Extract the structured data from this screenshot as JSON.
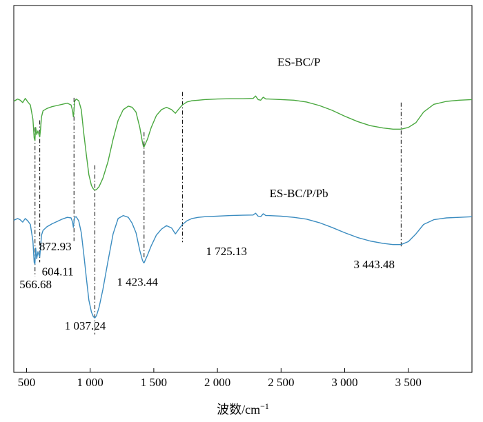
{
  "chart_data": {
    "type": "line",
    "title": "",
    "xlabel": "波数/cm",
    "xlabel_superscript": "−1",
    "ylabel": "",
    "xlim": [
      400,
      4000
    ],
    "xticks": [
      500,
      1000,
      1500,
      2000,
      2500,
      3000,
      3500
    ],
    "xtick_labels": [
      "500",
      "1 000",
      "1 500",
      "2 000",
      "2 500",
      "3 000",
      "3 500"
    ],
    "y_ticks_shown": false,
    "grid": false,
    "series": [
      {
        "name": "ES-BC/P",
        "color": "#4aa83f",
        "x": [
          400,
          430,
          450,
          470,
          490,
          510,
          530,
          550,
          560,
          566,
          572,
          580,
          590,
          598,
          604,
          610,
          618,
          630,
          660,
          700,
          740,
          780,
          820,
          850,
          862,
          868,
          873,
          878,
          890,
          910,
          930,
          950,
          970,
          990,
          1010,
          1025,
          1037,
          1050,
          1070,
          1100,
          1140,
          1180,
          1220,
          1260,
          1300,
          1330,
          1360,
          1390,
          1410,
          1418,
          1423,
          1432,
          1450,
          1480,
          1520,
          1560,
          1600,
          1640,
          1670,
          1700,
          1725,
          1760,
          1800,
          1850,
          1900,
          2000,
          2100,
          2200,
          2280,
          2300,
          2320,
          2340,
          2360,
          2380,
          2400,
          2500,
          2600,
          2700,
          2800,
          2900,
          3000,
          3100,
          3200,
          3300,
          3380,
          3443,
          3500,
          3560,
          3620,
          3700,
          3800,
          3900,
          4000
        ],
        "y": [
          2.1,
          1.9,
          2.0,
          2.2,
          1.85,
          2.15,
          2.4,
          3.6,
          5.2,
          5.4,
          4.3,
          4.9,
          4.6,
          4.9,
          5.1,
          4.5,
          3.4,
          2.9,
          2.7,
          2.55,
          2.45,
          2.35,
          2.25,
          2.4,
          2.9,
          3.4,
          2.9,
          2.1,
          1.9,
          2.05,
          2.8,
          4.8,
          6.6,
          8.3,
          9.2,
          9.5,
          9.6,
          9.55,
          9.3,
          8.6,
          7.2,
          5.3,
          3.7,
          2.8,
          2.5,
          2.6,
          3.0,
          4.3,
          5.5,
          5.9,
          5.95,
          5.75,
          5.3,
          4.3,
          3.3,
          2.8,
          2.6,
          2.8,
          3.1,
          2.7,
          2.4,
          2.15,
          2.05,
          2.0,
          1.95,
          1.9,
          1.88,
          1.88,
          1.85,
          1.65,
          1.95,
          2.0,
          1.75,
          1.9,
          1.9,
          1.95,
          2.0,
          2.15,
          2.45,
          2.85,
          3.35,
          3.8,
          4.15,
          4.35,
          4.45,
          4.45,
          4.3,
          3.9,
          3.0,
          2.35,
          2.1,
          2.0,
          1.95
        ]
      },
      {
        "name": "ES-BC/P/Pb",
        "color": "#3b8cc0",
        "x": [
          400,
          430,
          450,
          470,
          490,
          510,
          530,
          550,
          560,
          566,
          572,
          580,
          590,
          598,
          604,
          610,
          618,
          630,
          660,
          700,
          740,
          780,
          820,
          850,
          862,
          868,
          873,
          878,
          890,
          910,
          930,
          950,
          970,
          990,
          1010,
          1025,
          1037,
          1050,
          1070,
          1100,
          1140,
          1180,
          1220,
          1260,
          1300,
          1330,
          1360,
          1390,
          1410,
          1418,
          1423,
          1432,
          1450,
          1480,
          1520,
          1560,
          1600,
          1640,
          1670,
          1700,
          1725,
          1760,
          1800,
          1850,
          1900,
          2000,
          2100,
          2200,
          2280,
          2300,
          2320,
          2340,
          2360,
          2380,
          2400,
          2500,
          2600,
          2700,
          2800,
          2900,
          3000,
          3100,
          3200,
          3300,
          3380,
          3443,
          3500,
          3560,
          3620,
          3700,
          3800,
          3900,
          4000
        ],
        "y": [
          12.15,
          12.0,
          12.1,
          12.3,
          12.0,
          12.2,
          12.5,
          13.9,
          15.7,
          15.85,
          14.5,
          15.4,
          14.8,
          15.1,
          15.25,
          14.5,
          13.4,
          13.0,
          12.7,
          12.45,
          12.25,
          12.05,
          11.9,
          11.95,
          12.3,
          12.75,
          12.3,
          11.9,
          11.85,
          12.2,
          13.2,
          15.0,
          17.0,
          18.9,
          19.9,
          20.3,
          20.4,
          20.2,
          19.5,
          18.0,
          15.6,
          13.3,
          12.0,
          11.75,
          11.9,
          12.4,
          13.2,
          14.7,
          15.5,
          15.7,
          15.75,
          15.55,
          15.1,
          14.3,
          13.4,
          12.9,
          12.6,
          12.8,
          13.3,
          12.85,
          12.5,
          12.2,
          12.0,
          11.9,
          11.85,
          11.8,
          11.75,
          11.72,
          11.7,
          11.55,
          11.8,
          11.85,
          11.6,
          11.75,
          11.75,
          11.8,
          11.9,
          12.05,
          12.35,
          12.75,
          13.2,
          13.6,
          13.9,
          14.1,
          14.2,
          14.2,
          13.95,
          13.3,
          12.5,
          12.1,
          11.95,
          11.9,
          11.85
        ]
      }
    ],
    "series_labels": [
      {
        "text": "ES-BC/P",
        "x": 2640,
        "y": -0.9
      },
      {
        "text": "ES-BC/P/Pb",
        "x": 2640,
        "y": 10.2
      }
    ],
    "peak_lines": [
      {
        "x": 566.68,
        "y_top": 4.3,
        "y_bottom": 16.9
      },
      {
        "x": 604.11,
        "y_top": 3.7,
        "y_bottom": 15.7
      },
      {
        "x": 872.93,
        "y_top": 1.8,
        "y_bottom": 13.9
      },
      {
        "x": 1037.24,
        "y_top": 7.5,
        "y_bottom": 21.8
      },
      {
        "x": 1423.44,
        "y_top": 4.7,
        "y_bottom": 15.3
      },
      {
        "x": 1725.13,
        "y_top": 1.3,
        "y_bottom": 14.0
      },
      {
        "x": 3443.48,
        "y_top": 2.2,
        "y_bottom": 14.4
      }
    ],
    "annotations": [
      {
        "text": "566.68",
        "x": 445,
        "y": 17.9
      },
      {
        "text": "604.11",
        "x": 620,
        "y": 16.8
      },
      {
        "text": "872.93",
        "x": 600,
        "y": 14.7
      },
      {
        "text": "1 037.24",
        "x": 800,
        "y": 21.4
      },
      {
        "text": "1 423.44",
        "x": 1210,
        "y": 17.7
      },
      {
        "text": "1 725.13",
        "x": 1910,
        "y": 15.1
      },
      {
        "text": "3 443.48",
        "x": 3070,
        "y": 16.2
      }
    ],
    "ylim": [
      -6,
      25
    ]
  }
}
